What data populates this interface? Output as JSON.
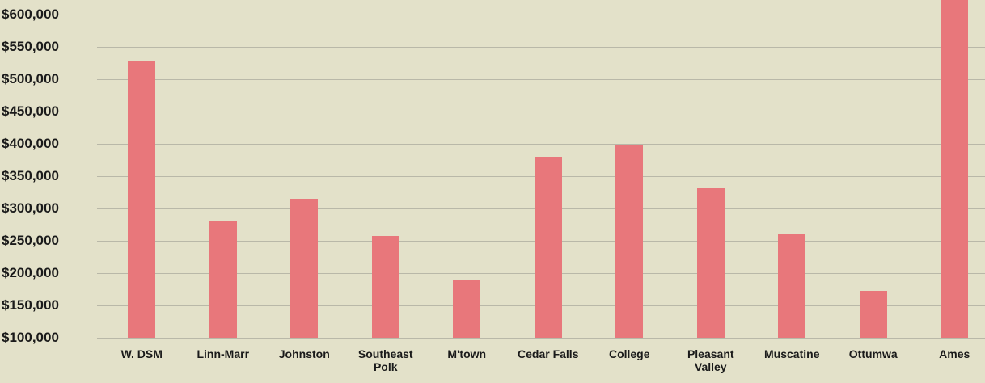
{
  "chart_data": {
    "type": "bar",
    "categories": [
      "W. DSM",
      "Linn-Marr",
      "Johnston",
      "Southeast Polk",
      "M'town",
      "Cedar Falls",
      "College",
      "Pleasant Valley",
      "Muscatine",
      "Ottumwa",
      "Ames"
    ],
    "values": [
      527000,
      280000,
      315000,
      258000,
      190000,
      380000,
      398000,
      331000,
      261000,
      172000,
      625000
    ],
    "color": "#e8777b",
    "ylim": [
      100000,
      620000
    ],
    "yticks": [
      {
        "value": 100000,
        "label": "$100,000"
      },
      {
        "value": 150000,
        "label": "$150,000"
      },
      {
        "value": 200000,
        "label": "$200,000"
      },
      {
        "value": 250000,
        "label": "$250,000"
      },
      {
        "value": 300000,
        "label": "$300,000"
      },
      {
        "value": 350000,
        "label": "$350,000"
      },
      {
        "value": 400000,
        "label": "$400,000"
      },
      {
        "value": 450000,
        "label": "$450,000"
      },
      {
        "value": 500000,
        "label": "$500,000"
      },
      {
        "value": 550000,
        "label": "$550,000"
      },
      {
        "value": 600000,
        "label": "$600,000"
      }
    ],
    "grid": true
  }
}
